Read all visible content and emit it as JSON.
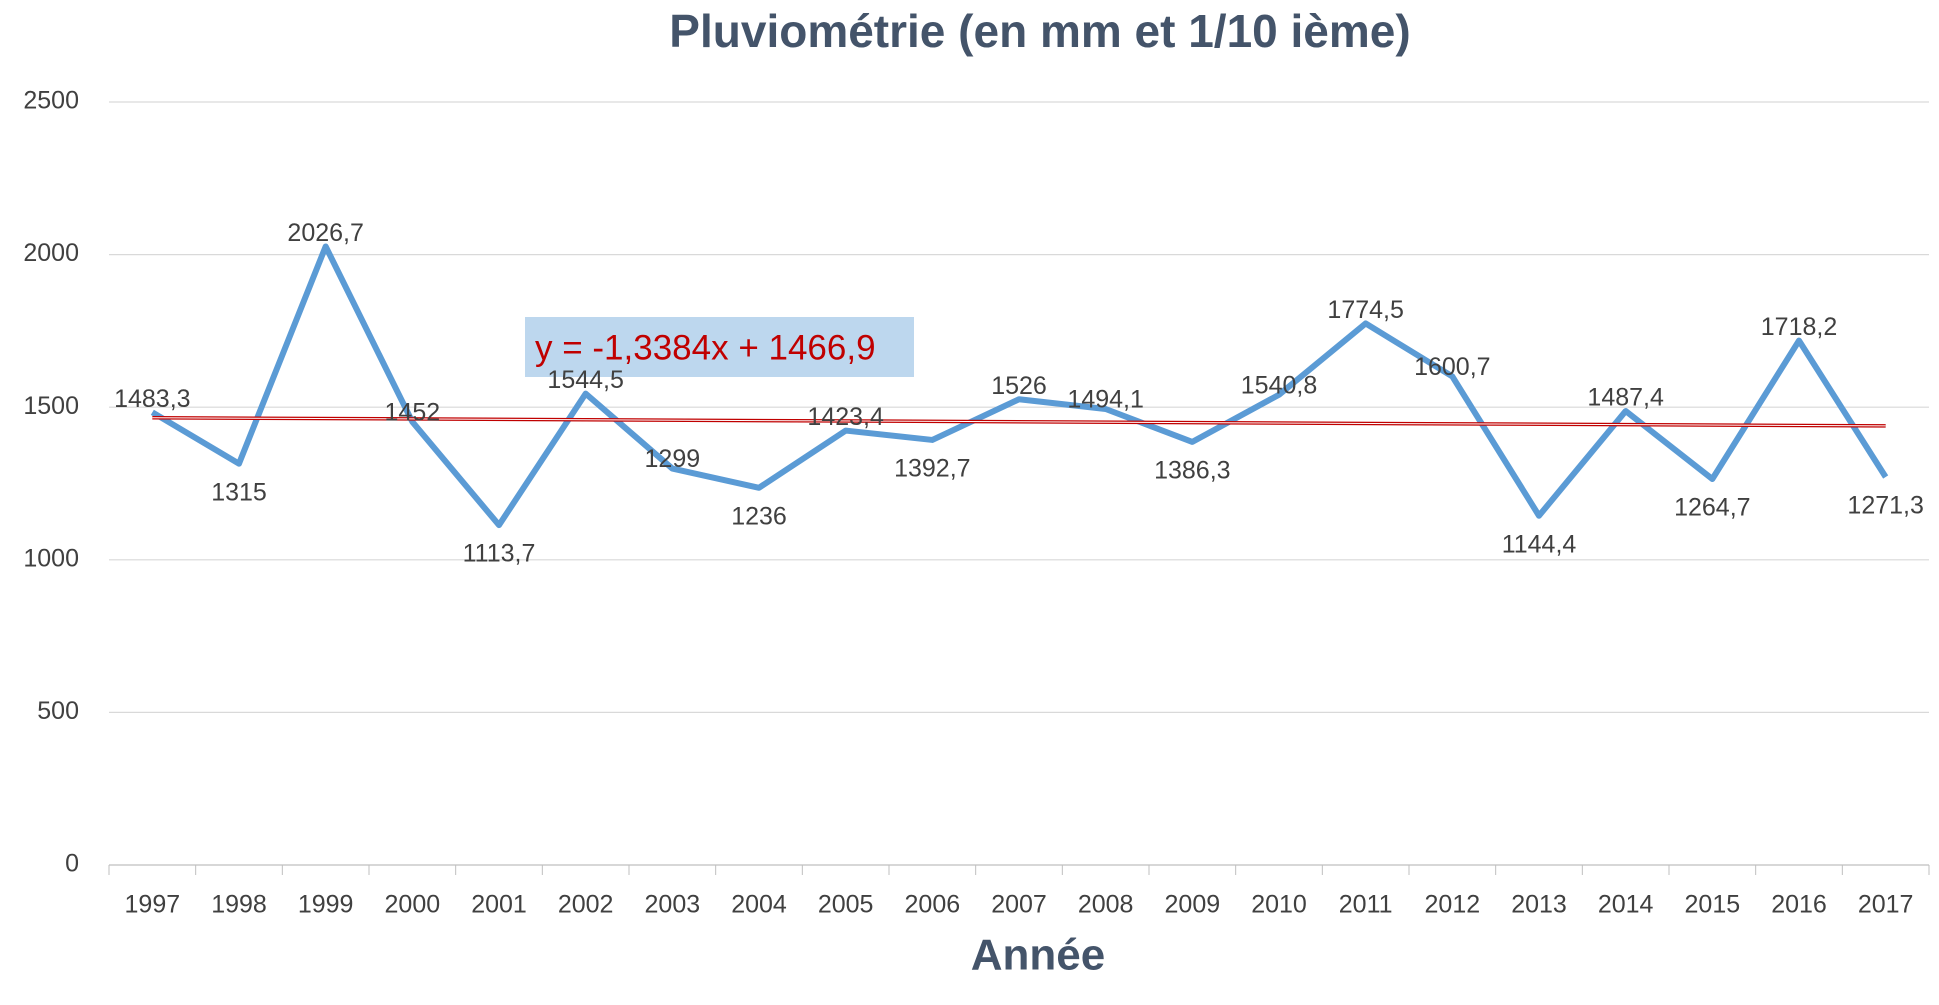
{
  "chart_data": {
    "type": "line",
    "title": "Pluviométrie (en mm et 1/10 ième)",
    "x_label": "Année",
    "categories": [
      "1997",
      "1998",
      "1999",
      "2000",
      "2001",
      "2002",
      "2003",
      "2004",
      "2005",
      "2006",
      "2007",
      "2008",
      "2009",
      "2010",
      "2011",
      "2012",
      "2013",
      "2014",
      "2015",
      "2016",
      "2017"
    ],
    "series": [
      {
        "name": "Pluviométrie",
        "color": "#5b9bd5",
        "values": [
          1483.3,
          1315,
          2026.7,
          1452,
          1113.7,
          1544.5,
          1299,
          1236,
          1423.4,
          1392.7,
          1526,
          1494.1,
          1386.3,
          1540.8,
          1774.5,
          1600.7,
          1144.4,
          1487.4,
          1264.7,
          1718.2,
          1271.3
        ],
        "value_labels": [
          "1483,3",
          "1315",
          "2026,7",
          "1452",
          "1113,7",
          "1544,5",
          "1299",
          "1236",
          "1423,4",
          "1392,7",
          "1526",
          "1494,1",
          "1386,3",
          "1540,8",
          "1774,5",
          "1600,7",
          "1144,4",
          "1487,4",
          "1264,7",
          "1718,2",
          "1271,3"
        ]
      }
    ],
    "trendline": {
      "label": "y = -1,3384x + 1466,9",
      "slope": -1.3384,
      "intercept": 1466.9,
      "color": "#c00000"
    },
    "ylim": [
      0,
      2500
    ],
    "yticks": [
      0,
      500,
      1000,
      1500,
      2000,
      2500
    ],
    "grid": true
  }
}
